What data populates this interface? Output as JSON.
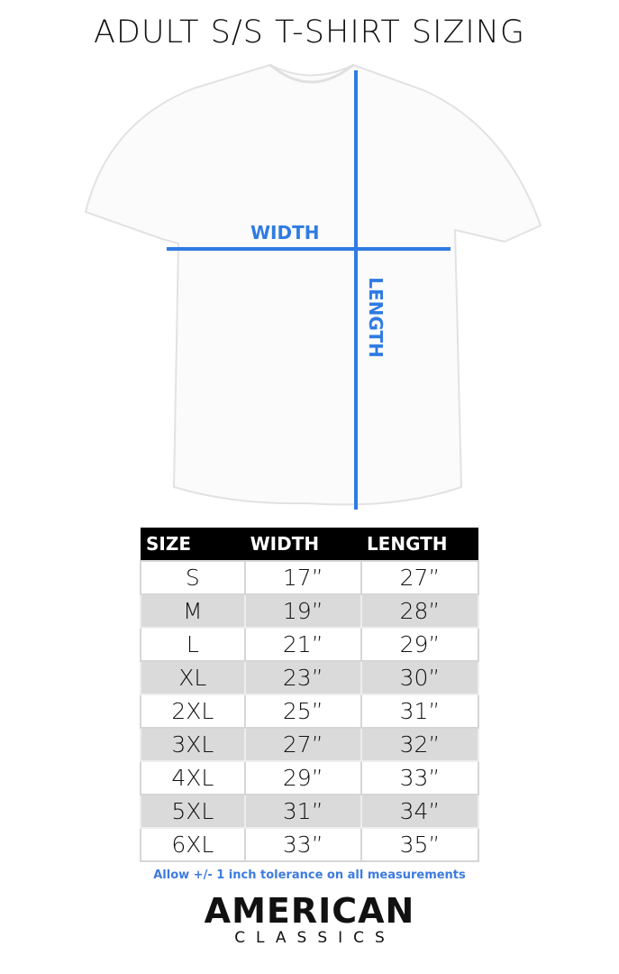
{
  "title": "ADULT S/S T-SHIRT SIZING",
  "diagram": {
    "width_label": "WIDTH",
    "length_label": "LENGTH",
    "accent_color": "#2f7be3"
  },
  "table": {
    "headers": [
      "SIZE",
      "WIDTH",
      "LENGTH"
    ],
    "rows": [
      [
        "S",
        "17”",
        "27”"
      ],
      [
        "M",
        "19”",
        "28”"
      ],
      [
        "L",
        "21”",
        "29”"
      ],
      [
        "XL",
        "23”",
        "30”"
      ],
      [
        "2XL",
        "25”",
        "31”"
      ],
      [
        "3XL",
        "27”",
        "32”"
      ],
      [
        "4XL",
        "29”",
        "33”"
      ],
      [
        "5XL",
        "31”",
        "34”"
      ],
      [
        "6XL",
        "33”",
        "35”"
      ]
    ]
  },
  "note": "Allow +/- 1 inch tolerance on all measurements",
  "logo": {
    "main": "AMERICAN",
    "sub": "CLASSICS"
  }
}
